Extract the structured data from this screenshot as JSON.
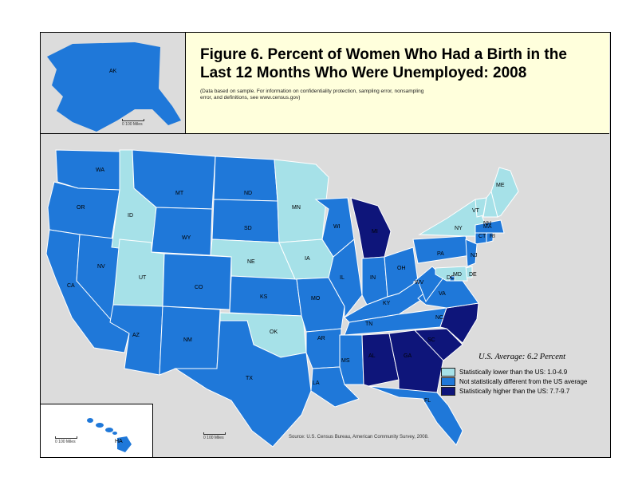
{
  "title": "Figure 6. Percent of Women Who Had a Birth in the Last 12 Months Who Were Unemployed: 2008",
  "note": "(Data based on sample. For information on confidentiality protection, sampling error, nonsampling error, and definitions, see www.census.gov)",
  "us_average": "U.S. Average: 6.2 Percent",
  "source": "Source: U.S. Census Bureau, American Community Survey, 2008.",
  "scales": {
    "ak": "0    100 Miles",
    "hi": "0      100 Miles",
    "conus": "0      100 Miles"
  },
  "colors": {
    "low": "#a6e1e8",
    "mid": "#1f78d9",
    "high": "#0e157a",
    "water": "#dcdcdc",
    "border": "#ffffff"
  },
  "legend": [
    {
      "class": "low",
      "label": "Statistically lower than the US: 1.0-4.9"
    },
    {
      "class": "mid",
      "label": "Not statistically different from the US average"
    },
    {
      "class": "high",
      "label": "Statistically higher than the US: 7.7-9.7"
    }
  ],
  "states": {
    "WA": "mid",
    "OR": "mid",
    "CA": "mid",
    "NV": "mid",
    "ID": "low",
    "MT": "mid",
    "WY": "mid",
    "UT": "low",
    "CO": "mid",
    "AZ": "mid",
    "NM": "mid",
    "ND": "mid",
    "SD": "mid",
    "NE": "low",
    "KS": "mid",
    "OK": "low",
    "TX": "mid",
    "MN": "low",
    "IA": "low",
    "MO": "mid",
    "AR": "mid",
    "LA": "mid",
    "WI": "mid",
    "IL": "mid",
    "MI": "high",
    "IN": "mid",
    "OH": "mid",
    "KY": "mid",
    "TN": "mid",
    "MS": "mid",
    "AL": "high",
    "GA": "high",
    "FL": "mid",
    "SC": "high",
    "NC": "high",
    "VA": "mid",
    "WV": "mid",
    "PA": "mid",
    "NY": "low",
    "VT": "low",
    "NH": "low",
    "ME": "low",
    "MA": "mid",
    "CT": "mid",
    "RI": "mid",
    "NJ": "mid",
    "DE": "low",
    "MD": "low",
    "DC": "mid",
    "AK": "mid",
    "HI": "mid"
  }
}
